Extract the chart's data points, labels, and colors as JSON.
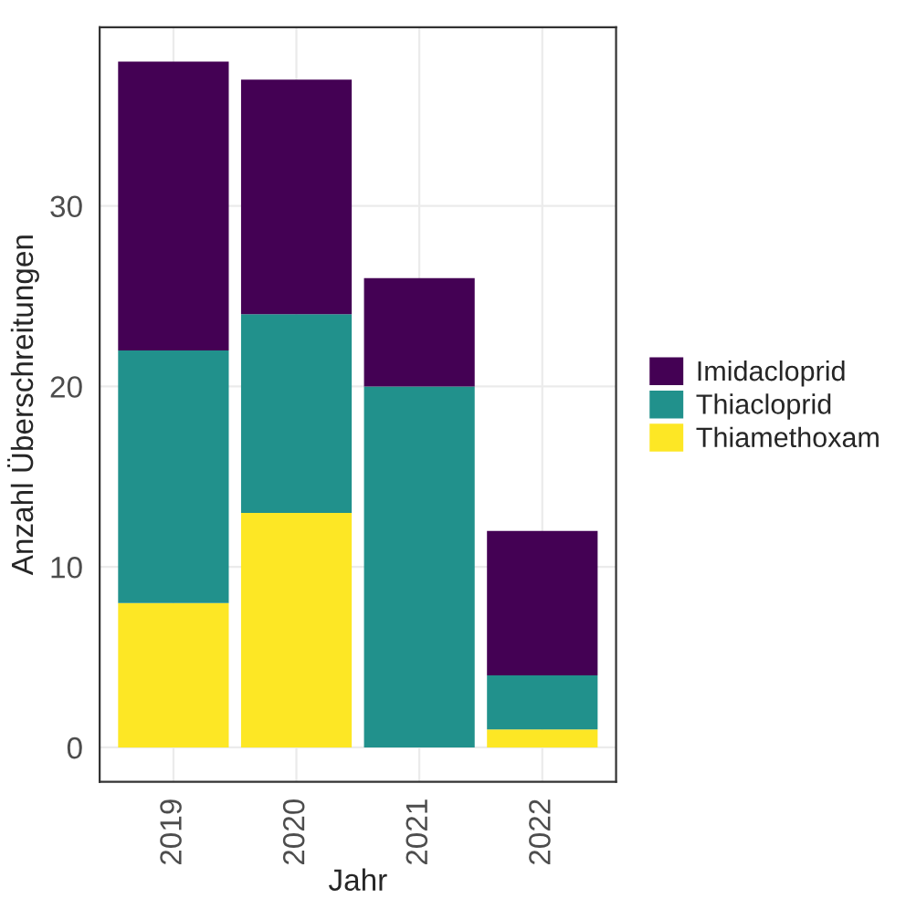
{
  "chart_data": {
    "type": "bar",
    "stacked": true,
    "xlabel": "Jahr",
    "ylabel": "Anzahl Überschreitungen",
    "categories": [
      "2019",
      "2020",
      "2021",
      "2022"
    ],
    "series": [
      {
        "name": "Thiamethoxam",
        "color": "#fde725",
        "values": [
          8,
          13,
          0,
          1
        ]
      },
      {
        "name": "Thiacloprid",
        "color": "#21918c",
        "values": [
          14,
          11,
          20,
          3
        ]
      },
      {
        "name": "Imidacloprid",
        "color": "#440154",
        "values": [
          16,
          13,
          6,
          8
        ]
      }
    ],
    "ylim": [
      -1.9,
      39.9
    ],
    "yticks": [
      0,
      10,
      20,
      30
    ],
    "grid": true,
    "legend": "right"
  }
}
